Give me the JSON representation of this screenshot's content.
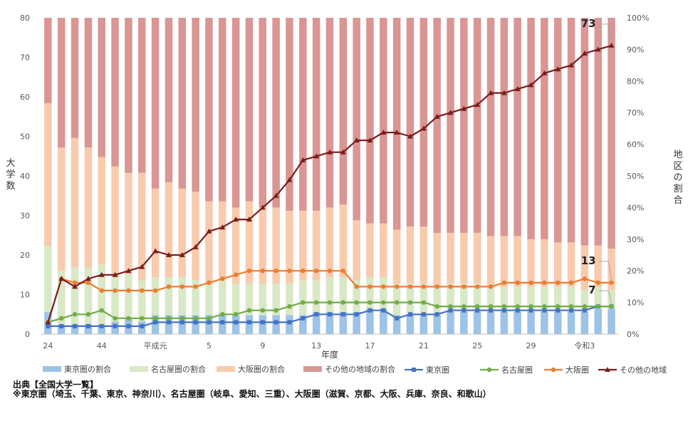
{
  "chart_data": {
    "type": "bar+line",
    "xlabel": "年度",
    "ylabel": "大学数",
    "y2label": "地区の割合",
    "ylim": [
      0,
      80
    ],
    "y2lim": [
      0,
      1
    ],
    "yticks": [
      "0",
      "10",
      "20",
      "30",
      "40",
      "50",
      "60",
      "70",
      "80"
    ],
    "y2ticks": [
      "0%",
      "10%",
      "20%",
      "30%",
      "40%",
      "50%",
      "60%",
      "70%",
      "80%",
      "90%",
      "100%"
    ],
    "x_tick_labels": [
      "24",
      "44",
      "平成元",
      "5",
      "9",
      "13",
      "17",
      "21",
      "25",
      "29",
      "令和3"
    ],
    "x": [
      "24",
      "25",
      "26",
      "27",
      "28",
      "29",
      "30",
      "31",
      "32",
      "33",
      "34",
      "35",
      "36",
      "37",
      "38",
      "39",
      "40",
      "41",
      "42",
      "43",
      "44",
      "45",
      "46",
      "47",
      "48",
      "49",
      "50",
      "51",
      "52",
      "53",
      "54",
      "55",
      "56",
      "57",
      "58",
      "59",
      "60",
      "61",
      "62",
      "63",
      "令和元",
      "令和2",
      "令和3"
    ],
    "lines": [
      {
        "name": "東京圏",
        "color": "#4472C4",
        "marker": "square",
        "values": [
          2,
          2,
          2,
          2,
          2,
          2,
          2,
          2,
          3,
          3,
          3,
          3,
          3,
          3,
          3,
          3,
          3,
          3,
          3,
          4,
          5,
          5,
          5,
          5,
          6,
          6,
          4,
          5,
          5,
          5,
          6,
          6,
          6,
          6,
          6,
          6,
          6,
          6,
          6,
          6,
          6,
          7,
          7
        ]
      },
      {
        "name": "名古屋圏",
        "color": "#70AD47",
        "marker": "circle",
        "values": [
          3,
          4,
          5,
          5,
          6,
          4,
          4,
          4,
          4,
          4,
          4,
          4,
          4,
          5,
          5,
          6,
          6,
          6,
          7,
          8,
          8,
          8,
          8,
          8,
          8,
          8,
          8,
          8,
          8,
          7,
          7,
          7,
          7,
          7,
          7,
          7,
          7,
          7,
          7,
          7,
          7,
          7,
          7
        ]
      },
      {
        "name": "大阪圏",
        "color": "#ED7D31",
        "marker": "circle",
        "values": [
          3,
          14,
          13,
          13,
          11,
          11,
          11,
          11,
          11,
          12,
          12,
          12,
          13,
          14,
          15,
          16,
          16,
          16,
          16,
          16,
          16,
          16,
          16,
          12,
          12,
          12,
          12,
          12,
          12,
          12,
          12,
          12,
          12,
          12,
          13,
          13,
          13,
          13,
          13,
          13,
          14,
          13,
          13
        ]
      },
      {
        "name": "その他の地域",
        "color": "#7B1E1E",
        "marker": "triangle",
        "values": [
          3,
          14,
          12,
          14,
          15,
          15,
          16,
          17,
          21,
          20,
          20,
          22,
          26,
          27,
          29,
          29,
          32,
          35,
          39,
          44,
          45,
          46,
          46,
          49,
          49,
          51,
          51,
          50,
          52,
          55,
          56,
          57,
          58,
          61,
          61,
          62,
          63,
          66,
          67,
          68,
          71,
          72,
          73
        ]
      }
    ],
    "share_series": [
      {
        "name": "東京圏の割合",
        "color": "#9DC3E6",
        "values": [
          0.07,
          0.03,
          0.03,
          0.03,
          0.03,
          0.04,
          0.05,
          0.04,
          0.06,
          0.06,
          0.06,
          0.06,
          0.06,
          0.06,
          0.06,
          0.06,
          0.06,
          0.06,
          0.06,
          0.06,
          0.07,
          0.07,
          0.07,
          0.07,
          0.08,
          0.08,
          0.06,
          0.06,
          0.06,
          0.06,
          0.07,
          0.07,
          0.07,
          0.07,
          0.07,
          0.07,
          0.07,
          0.07,
          0.07,
          0.07,
          0.07,
          0.08,
          0.08
        ]
      },
      {
        "name": "名古屋圏の割合",
        "color": "#D9E8C6",
        "values": [
          0.21,
          0.17,
          0.18,
          0.18,
          0.19,
          0.14,
          0.14,
          0.13,
          0.12,
          0.12,
          0.12,
          0.11,
          0.1,
          0.11,
          0.1,
          0.1,
          0.1,
          0.1,
          0.1,
          0.11,
          0.1,
          0.11,
          0.11,
          0.1,
          0.1,
          0.1,
          0.1,
          0.1,
          0.1,
          0.09,
          0.09,
          0.09,
          0.09,
          0.08,
          0.08,
          0.08,
          0.08,
          0.08,
          0.08,
          0.08,
          0.07,
          0.07,
          0.06
        ]
      },
      {
        "name": "大阪圏の割合",
        "color": "#F8CBAD",
        "values": [
          0.45,
          0.39,
          0.41,
          0.38,
          0.34,
          0.35,
          0.32,
          0.34,
          0.28,
          0.3,
          0.28,
          0.28,
          0.26,
          0.25,
          0.24,
          0.26,
          0.24,
          0.24,
          0.23,
          0.22,
          0.22,
          0.22,
          0.23,
          0.19,
          0.17,
          0.17,
          0.17,
          0.18,
          0.18,
          0.17,
          0.16,
          0.16,
          0.16,
          0.16,
          0.16,
          0.16,
          0.15,
          0.15,
          0.14,
          0.14,
          0.14,
          0.13,
          0.13
        ]
      },
      {
        "name": "その他の地域の割合",
        "color": "#D99694",
        "values": [
          0.27,
          0.41,
          0.38,
          0.41,
          0.44,
          0.47,
          0.49,
          0.49,
          0.54,
          0.52,
          0.54,
          0.55,
          0.58,
          0.58,
          0.6,
          0.58,
          0.6,
          0.6,
          0.61,
          0.61,
          0.61,
          0.6,
          0.59,
          0.64,
          0.65,
          0.65,
          0.67,
          0.66,
          0.66,
          0.68,
          0.68,
          0.68,
          0.68,
          0.69,
          0.69,
          0.69,
          0.7,
          0.7,
          0.71,
          0.71,
          0.72,
          0.72,
          0.73
        ]
      }
    ],
    "annotations": [
      "73",
      "13",
      "7"
    ],
    "legend_position": "bottom",
    "grid": false
  },
  "labels": {
    "y_axis_title": "大学数",
    "y2_axis_title": "地区の割合",
    "source_note": "出典【全国大学一覧】",
    "region_note": "※東京圏（埼玉、千葉、東京、神奈川）、名古屋圏（岐阜、愛知、三重）、大阪圏（滋賀、京都、大阪、兵庫、奈良、和歌山）"
  }
}
